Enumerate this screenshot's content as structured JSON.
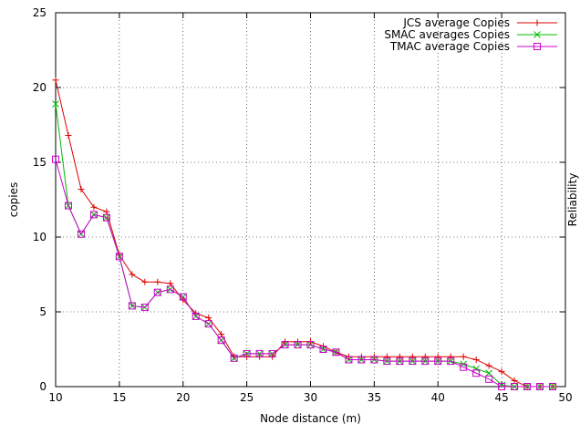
{
  "chart_data": {
    "type": "line",
    "title": "",
    "xlabel": "Node distance (m)",
    "ylabel": "copies",
    "y2label": "Reliability",
    "xlim": [
      10,
      50
    ],
    "ylim": [
      0,
      25
    ],
    "xticks": [
      10,
      15,
      20,
      25,
      30,
      35,
      40,
      45,
      50
    ],
    "yticks": [
      0,
      5,
      10,
      15,
      20,
      25
    ],
    "grid": true,
    "legend_position": "top-right",
    "x": [
      10,
      11,
      12,
      13,
      14,
      15,
      16,
      17,
      18,
      19,
      20,
      21,
      22,
      23,
      24,
      25,
      26,
      27,
      28,
      29,
      30,
      31,
      32,
      33,
      34,
      35,
      36,
      37,
      38,
      39,
      40,
      41,
      42,
      43,
      44,
      45,
      46,
      47,
      48,
      49
    ],
    "series": [
      {
        "name": "JCS average Copies",
        "color": "#dd0000",
        "marker": "plus",
        "values": [
          20.5,
          16.8,
          13.2,
          12.0,
          11.7,
          8.8,
          7.5,
          7.0,
          7.0,
          6.9,
          5.8,
          4.9,
          4.6,
          3.5,
          2.0,
          2.0,
          2.0,
          2.0,
          3.0,
          3.0,
          3.0,
          2.7,
          2.3,
          2.0,
          2.0,
          2.0,
          2.0,
          2.0,
          2.0,
          2.0,
          2.0,
          2.0,
          2.0,
          1.8,
          1.4,
          1.0,
          0.4,
          0.0,
          0.0,
          0.0
        ]
      },
      {
        "name": "SMAC averages Copies",
        "color": "#00bb00",
        "marker": "cross",
        "values": [
          18.9,
          12.1,
          10.2,
          11.5,
          11.3,
          8.7,
          5.4,
          5.3,
          6.3,
          6.5,
          6.0,
          4.7,
          4.2,
          3.1,
          1.9,
          2.2,
          2.2,
          2.2,
          2.8,
          2.8,
          2.8,
          2.5,
          2.3,
          1.8,
          1.8,
          1.8,
          1.7,
          1.7,
          1.7,
          1.7,
          1.7,
          1.7,
          1.5,
          1.2,
          0.9,
          0.1,
          0.0,
          0.0,
          0.0,
          0.0
        ]
      },
      {
        "name": "TMAC average Copies",
        "color": "#cc00cc",
        "marker": "square",
        "values": [
          15.2,
          12.1,
          10.2,
          11.5,
          11.3,
          8.7,
          5.4,
          5.3,
          6.3,
          6.5,
          6.0,
          4.7,
          4.2,
          3.1,
          1.9,
          2.2,
          2.2,
          2.2,
          2.8,
          2.8,
          2.8,
          2.5,
          2.3,
          1.8,
          1.8,
          1.8,
          1.7,
          1.7,
          1.7,
          1.7,
          1.7,
          1.7,
          1.3,
          0.9,
          0.5,
          0.0,
          0.0,
          0.0,
          0.0,
          0.0
        ]
      }
    ]
  }
}
